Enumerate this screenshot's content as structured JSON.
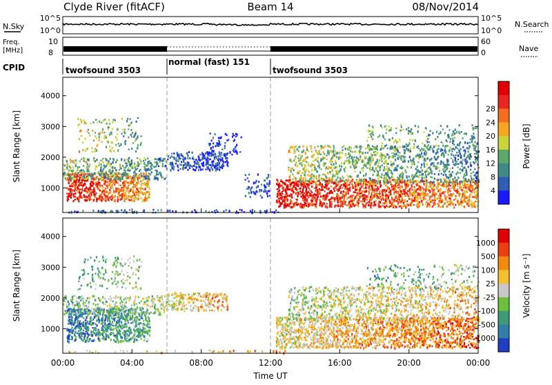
{
  "header": {
    "title": "Clyde River (fitACF)",
    "beam": "Beam 14",
    "date": "08/Nov/2014"
  },
  "noise_panel": {
    "left_label": "N.Sky",
    "left_ticks": [
      "10^5",
      "10^0"
    ],
    "right_label": "N.Search",
    "right_ticks": [
      "10^5",
      "10^0"
    ]
  },
  "freq_panel": {
    "left_label_line1": "Freq.",
    "left_label_line2": "[MHz]",
    "left_ticks": [
      "10",
      "8"
    ],
    "right_label": "Nave",
    "right_ticks": [
      "60",
      "0"
    ]
  },
  "cpid": {
    "label": "CPID",
    "segments": [
      {
        "start_hour": 0,
        "end_hour": 6,
        "text": "twofsound 3503"
      },
      {
        "start_hour": 6,
        "end_hour": 12,
        "text": "normal (fast) 151"
      },
      {
        "start_hour": 12,
        "end_hour": 24,
        "text": "twofsound 3503"
      }
    ]
  },
  "x_axis": {
    "title": "Time UT",
    "ticks": [
      "00:00",
      "04:00",
      "08:00",
      "12:00",
      "16:00",
      "20:00",
      "00:00"
    ],
    "tick_hours": [
      0,
      4,
      8,
      12,
      16,
      20,
      24
    ]
  },
  "chart_data": [
    {
      "type": "heatmap",
      "name": "power",
      "ylabel": "Slant Range [km]",
      "yticks": [
        1000,
        2000,
        3000,
        4000
      ],
      "ylim": [
        200,
        4600
      ],
      "xlim": [
        0,
        24
      ],
      "colorbar": {
        "label": "Power [dB]",
        "ticks": [
          "4",
          "8",
          "12",
          "16",
          "20",
          "24",
          "28"
        ],
        "colors": [
          "#1a1aff",
          "#2f5fb0",
          "#3f8a88",
          "#5ea86a",
          "#c8d43c",
          "#f5a623",
          "#f07020",
          "#e8281e",
          "#e00000"
        ]
      },
      "clusters": [
        {
          "t0": 0.2,
          "t1": 5.0,
          "r0": 600,
          "r1": 1500,
          "v0": 0.9,
          "v1": 0.6,
          "density": 0.85
        },
        {
          "t0": 0.0,
          "t1": 6.0,
          "r0": 1300,
          "r1": 2000,
          "v0": 0.45,
          "v1": 0.25,
          "density": 0.5
        },
        {
          "t0": 0.8,
          "t1": 4.5,
          "r0": 2200,
          "r1": 3300,
          "v0": 0.55,
          "v1": 0.3,
          "density": 0.18
        },
        {
          "t0": 6.0,
          "t1": 9.5,
          "r0": 1600,
          "r1": 2200,
          "v0": 0.2,
          "v1": 0.1,
          "density": 0.6
        },
        {
          "t0": 8.3,
          "t1": 10.3,
          "r0": 2100,
          "r1": 2800,
          "v0": 0.15,
          "v1": 0.05,
          "density": 0.25
        },
        {
          "t0": 10.5,
          "t1": 12.0,
          "r0": 700,
          "r1": 1500,
          "v0": 0.2,
          "v1": 0.05,
          "density": 0.25
        },
        {
          "t0": 12.3,
          "t1": 24.0,
          "r0": 400,
          "r1": 1300,
          "v0": 0.9,
          "v1": 0.65,
          "density": 0.85
        },
        {
          "t0": 13.0,
          "t1": 24.0,
          "r0": 1200,
          "r1": 2400,
          "v0": 0.5,
          "v1": 0.25,
          "density": 0.45
        },
        {
          "t0": 17.5,
          "t1": 24.0,
          "r0": 2300,
          "r1": 3100,
          "v0": 0.45,
          "v1": 0.25,
          "density": 0.2
        },
        {
          "t0": 0.0,
          "t1": 13.0,
          "r0": 220,
          "r1": 320,
          "v0": 0.25,
          "v1": 0.05,
          "density": 0.35
        }
      ]
    },
    {
      "type": "heatmap",
      "name": "velocity",
      "ylabel": "Slant Range [km]",
      "yticks": [
        1000,
        2000,
        3000,
        4000
      ],
      "ylim": [
        200,
        4600
      ],
      "xlim": [
        0,
        24
      ],
      "colorbar": {
        "label": "Velocity [m s⁻¹]",
        "ticks": [
          "1000",
          "500",
          "100",
          "25",
          "-25",
          "-100",
          "-500",
          "-1000"
        ],
        "colors": [
          "#1f3fc0",
          "#2f7fa8",
          "#3f9a78",
          "#6cc040",
          "#c8c8c8",
          "#f5c030",
          "#f08a10",
          "#e84010",
          "#e00000"
        ]
      },
      "clusters": [
        {
          "t0": 0.2,
          "t1": 5.0,
          "r0": 600,
          "r1": 1700,
          "v0": 0.15,
          "v1": 0.35,
          "density": 0.8
        },
        {
          "t0": 0.0,
          "t1": 6.0,
          "r0": 1500,
          "r1": 2100,
          "v0": 0.35,
          "v1": 0.5,
          "density": 0.45
        },
        {
          "t0": 0.8,
          "t1": 4.5,
          "r0": 2300,
          "r1": 3400,
          "v0": 0.3,
          "v1": 0.45,
          "density": 0.18
        },
        {
          "t0": 6.0,
          "t1": 9.5,
          "r0": 1600,
          "r1": 2200,
          "v0": 0.5,
          "v1": 0.7,
          "density": 0.55
        },
        {
          "t0": 12.3,
          "t1": 24.0,
          "r0": 400,
          "r1": 1400,
          "v0": 0.55,
          "v1": 0.8,
          "density": 0.8
        },
        {
          "t0": 13.0,
          "t1": 24.0,
          "r0": 1300,
          "r1": 2400,
          "v0": 0.45,
          "v1": 0.65,
          "density": 0.45
        },
        {
          "t0": 17.5,
          "t1": 24.0,
          "r0": 2300,
          "r1": 3100,
          "v0": 0.25,
          "v1": 0.45,
          "density": 0.18
        },
        {
          "t0": 0.0,
          "t1": 13.0,
          "r0": 220,
          "r1": 320,
          "v0": 0.55,
          "v1": 0.75,
          "density": 0.2
        }
      ]
    }
  ]
}
